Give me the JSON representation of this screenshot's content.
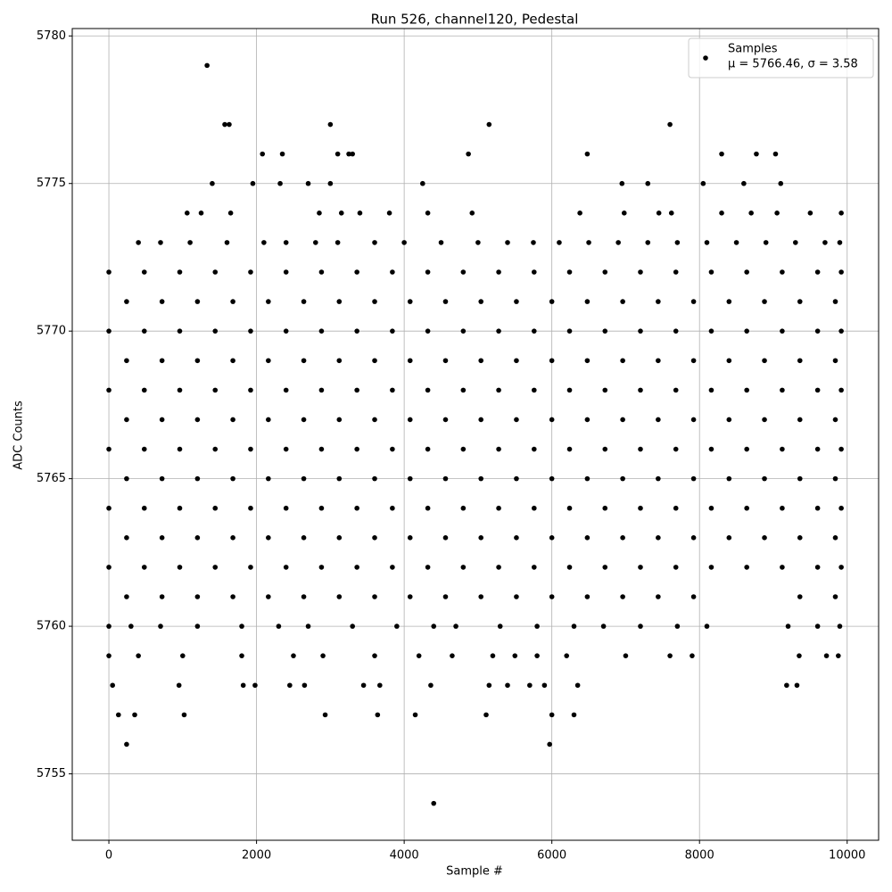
{
  "chart_data": {
    "type": "scatter",
    "title": "Run 526, channel120, Pedestal",
    "x_label": "Sample #",
    "y_label": "ADC Counts",
    "xlim": [
      -496,
      10426
    ],
    "ylim": [
      5752.75,
      5780.25
    ],
    "xticks": [
      0,
      2000,
      4000,
      6000,
      8000,
      10000
    ],
    "yticks": [
      5755,
      5760,
      5765,
      5770,
      5775,
      5780
    ],
    "grid": true,
    "legend": "upper right",
    "annotation": "μ = 5766.46, σ = 3.58",
    "series": [
      {
        "name": "Samples",
        "color": "#000000",
        "x": [
          1330,
          1570,
          1630,
          3000,
          5150,
          7600,
          2080,
          2350,
          3100,
          3250,
          3300,
          4870,
          6480,
          8300,
          8770,
          9030,
          1400,
          1950,
          2320,
          2700,
          3000,
          4250,
          6950,
          7300,
          8050,
          8600,
          9100,
          1060,
          1250,
          1650,
          2850,
          3150,
          3400,
          3800,
          4320,
          4920,
          6380,
          6980,
          7450,
          7620,
          8300,
          8700,
          9050,
          9500,
          9920,
          400,
          700,
          1100,
          1600,
          2100,
          2400,
          2800,
          3100,
          3600,
          4000,
          4500,
          5000,
          5400,
          5750,
          6100,
          6500,
          6900,
          7300,
          7700,
          8100,
          8500,
          8900,
          9300,
          9700,
          9900,
          0,
          480,
          960,
          1440,
          1920,
          2400,
          2880,
          3360,
          3840,
          4320,
          4800,
          5280,
          5760,
          6240,
          6720,
          7200,
          7680,
          8160,
          8640,
          9120,
          9600,
          9920,
          240,
          720,
          1200,
          1680,
          2160,
          2640,
          3120,
          3600,
          4080,
          4560,
          5040,
          5520,
          6000,
          6480,
          6960,
          7440,
          7920,
          8400,
          8880,
          9360,
          9840,
          0,
          480,
          960,
          1440,
          1920,
          2400,
          2880,
          3360,
          3840,
          4320,
          4800,
          5280,
          5760,
          6240,
          6720,
          7200,
          7680,
          8160,
          8640,
          9120,
          9600,
          9920,
          240,
          720,
          1200,
          1680,
          2160,
          2640,
          3120,
          3600,
          4080,
          4560,
          5040,
          5520,
          6000,
          6480,
          6960,
          7440,
          7920,
          8400,
          8880,
          9360,
          9840,
          0,
          480,
          960,
          1440,
          1920,
          2400,
          2880,
          3360,
          3840,
          4320,
          4800,
          5280,
          5760,
          6240,
          6720,
          7200,
          7680,
          8160,
          8640,
          9120,
          9600,
          9920,
          240,
          720,
          1200,
          1680,
          2160,
          2640,
          3120,
          3600,
          4080,
          4560,
          5040,
          5520,
          6000,
          6480,
          6960,
          7440,
          7920,
          8400,
          8880,
          9360,
          9840,
          0,
          480,
          960,
          1440,
          1920,
          2400,
          2880,
          3360,
          3840,
          4320,
          4800,
          5280,
          5760,
          6240,
          6720,
          7200,
          7680,
          8160,
          8640,
          9120,
          9600,
          9920,
          240,
          720,
          1200,
          1680,
          2160,
          2640,
          3120,
          3600,
          4080,
          4560,
          5040,
          5520,
          6000,
          6480,
          6960,
          7440,
          7920,
          8400,
          8880,
          9360,
          9840,
          0,
          480,
          960,
          1440,
          1920,
          2400,
          2880,
          3360,
          3840,
          4320,
          4800,
          5280,
          5760,
          6240,
          6720,
          7200,
          7680,
          8160,
          8640,
          9120,
          9600,
          9920,
          240,
          720,
          1200,
          1680,
          2160,
          2640,
          3120,
          3600,
          4080,
          4560,
          5040,
          5520,
          6000,
          6480,
          6960,
          7440,
          7920,
          8400,
          8880,
          9360,
          9840,
          0,
          480,
          960,
          1440,
          1920,
          2400,
          2880,
          3360,
          3840,
          4320,
          4800,
          5280,
          5760,
          6240,
          6720,
          7200,
          7680,
          8160,
          8640,
          9120,
          9600,
          9920,
          240,
          720,
          1200,
          1680,
          2160,
          2640,
          3120,
          3600,
          4080,
          4560,
          5040,
          5520,
          6000,
          6480,
          6960,
          7440,
          7920,
          9360,
          9840,
          0,
          300,
          700,
          1200,
          1800,
          2300,
          2700,
          3300,
          3900,
          4400,
          4700,
          5300,
          5800,
          6300,
          6700,
          7200,
          7700,
          8100,
          9200,
          9600,
          9900,
          0,
          400,
          1000,
          1800,
          2500,
          2900,
          3600,
          4200,
          4650,
          5200,
          5500,
          5800,
          6200,
          7000,
          7600,
          7900,
          9350,
          9720,
          9880,
          50,
          950,
          1820,
          1980,
          2450,
          2650,
          3450,
          3670,
          4360,
          5150,
          5400,
          5700,
          5900,
          6350,
          9180,
          9320,
          130,
          350,
          1020,
          2930,
          3640,
          4150,
          5110,
          6000,
          6300,
          240,
          5970,
          4400
        ],
        "values": [
          5779,
          5777,
          5777,
          5777,
          5777,
          5777,
          5776,
          5776,
          5776,
          5776,
          5776,
          5776,
          5776,
          5776,
          5776,
          5776,
          5775,
          5775,
          5775,
          5775,
          5775,
          5775,
          5775,
          5775,
          5775,
          5775,
          5775,
          5774,
          5774,
          5774,
          5774,
          5774,
          5774,
          5774,
          5774,
          5774,
          5774,
          5774,
          5774,
          5774,
          5774,
          5774,
          5774,
          5774,
          5774,
          5773,
          5773,
          5773,
          5773,
          5773,
          5773,
          5773,
          5773,
          5773,
          5773,
          5773,
          5773,
          5773,
          5773,
          5773,
          5773,
          5773,
          5773,
          5773,
          5773,
          5773,
          5773,
          5773,
          5773,
          5773,
          5772,
          5772,
          5772,
          5772,
          5772,
          5772,
          5772,
          5772,
          5772,
          5772,
          5772,
          5772,
          5772,
          5772,
          5772,
          5772,
          5772,
          5772,
          5772,
          5772,
          5772,
          5772,
          5771,
          5771,
          5771,
          5771,
          5771,
          5771,
          5771,
          5771,
          5771,
          5771,
          5771,
          5771,
          5771,
          5771,
          5771,
          5771,
          5771,
          5771,
          5771,
          5771,
          5771,
          5770,
          5770,
          5770,
          5770,
          5770,
          5770,
          5770,
          5770,
          5770,
          5770,
          5770,
          5770,
          5770,
          5770,
          5770,
          5770,
          5770,
          5770,
          5770,
          5770,
          5770,
          5770,
          5769,
          5769,
          5769,
          5769,
          5769,
          5769,
          5769,
          5769,
          5769,
          5769,
          5769,
          5769,
          5769,
          5769,
          5769,
          5769,
          5769,
          5769,
          5769,
          5769,
          5769,
          5768,
          5768,
          5768,
          5768,
          5768,
          5768,
          5768,
          5768,
          5768,
          5768,
          5768,
          5768,
          5768,
          5768,
          5768,
          5768,
          5768,
          5768,
          5768,
          5768,
          5768,
          5768,
          5767,
          5767,
          5767,
          5767,
          5767,
          5767,
          5767,
          5767,
          5767,
          5767,
          5767,
          5767,
          5767,
          5767,
          5767,
          5767,
          5767,
          5767,
          5767,
          5767,
          5767,
          5766,
          5766,
          5766,
          5766,
          5766,
          5766,
          5766,
          5766,
          5766,
          5766,
          5766,
          5766,
          5766,
          5766,
          5766,
          5766,
          5766,
          5766,
          5766,
          5766,
          5766,
          5766,
          5765,
          5765,
          5765,
          5765,
          5765,
          5765,
          5765,
          5765,
          5765,
          5765,
          5765,
          5765,
          5765,
          5765,
          5765,
          5765,
          5765,
          5765,
          5765,
          5765,
          5765,
          5764,
          5764,
          5764,
          5764,
          5764,
          5764,
          5764,
          5764,
          5764,
          5764,
          5764,
          5764,
          5764,
          5764,
          5764,
          5764,
          5764,
          5764,
          5764,
          5764,
          5764,
          5764,
          5763,
          5763,
          5763,
          5763,
          5763,
          5763,
          5763,
          5763,
          5763,
          5763,
          5763,
          5763,
          5763,
          5763,
          5763,
          5763,
          5763,
          5763,
          5763,
          5763,
          5763,
          5762,
          5762,
          5762,
          5762,
          5762,
          5762,
          5762,
          5762,
          5762,
          5762,
          5762,
          5762,
          5762,
          5762,
          5762,
          5762,
          5762,
          5762,
          5762,
          5762,
          5762,
          5762,
          5761,
          5761,
          5761,
          5761,
          5761,
          5761,
          5761,
          5761,
          5761,
          5761,
          5761,
          5761,
          5761,
          5761,
          5761,
          5761,
          5761,
          5761,
          5761,
          5760,
          5760,
          5760,
          5760,
          5760,
          5760,
          5760,
          5760,
          5760,
          5760,
          5760,
          5760,
          5760,
          5760,
          5760,
          5760,
          5760,
          5760,
          5760,
          5760,
          5760,
          5759,
          5759,
          5759,
          5759,
          5759,
          5759,
          5759,
          5759,
          5759,
          5759,
          5759,
          5759,
          5759,
          5759,
          5759,
          5759,
          5759,
          5759,
          5759,
          5758,
          5758,
          5758,
          5758,
          5758,
          5758,
          5758,
          5758,
          5758,
          5758,
          5758,
          5758,
          5758,
          5758,
          5758,
          5758,
          5757,
          5757,
          5757,
          5757,
          5757,
          5757,
          5757,
          5757,
          5757,
          5756,
          5756,
          5754
        ]
      }
    ]
  }
}
